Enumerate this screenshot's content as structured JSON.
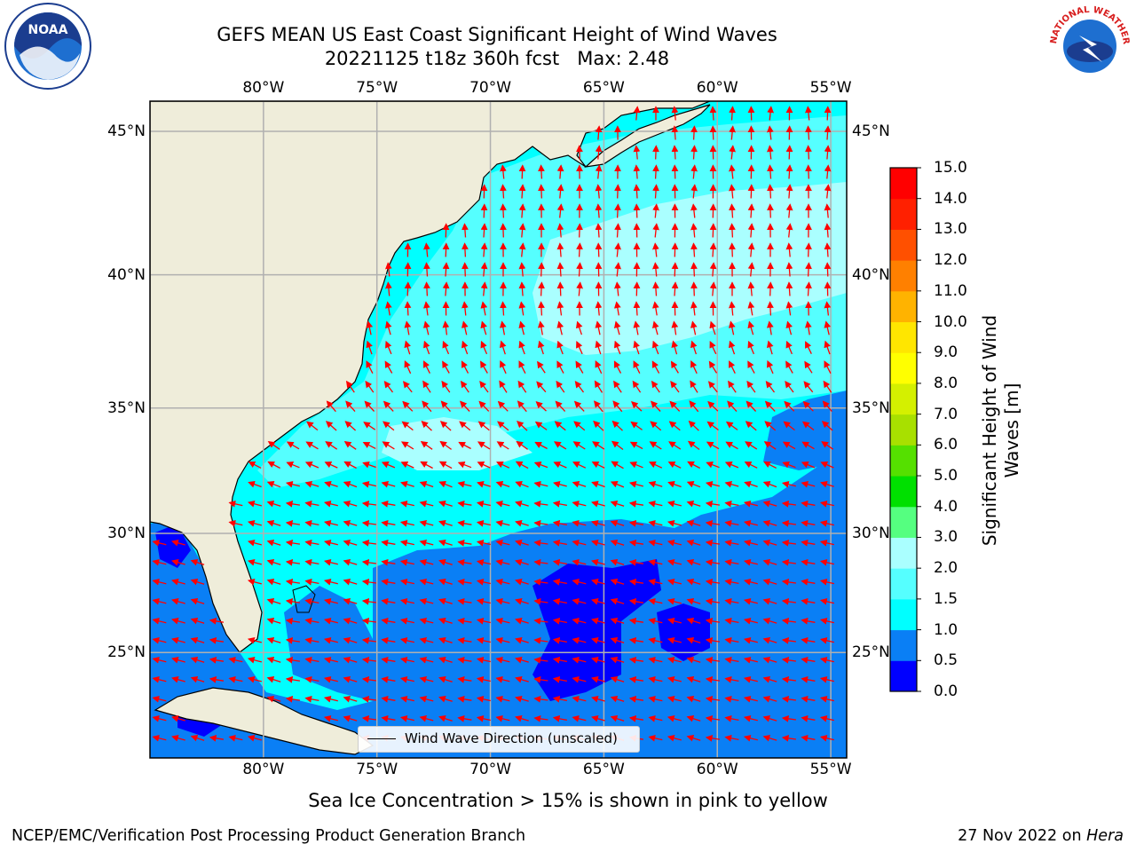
{
  "title": {
    "line1": "GEFS MEAN US East Coast Significant Height of Wind Waves",
    "line2": "20221125 t18z 360h fcst   Max: 2.48"
  },
  "map": {
    "lon_range": [
      -85,
      -54.3
    ],
    "lat_range": [
      20.4,
      46.0
    ],
    "lon_ticks": [
      -80,
      -75,
      -70,
      -65,
      -60,
      -55
    ],
    "lat_ticks": [
      25,
      30,
      35,
      40,
      45
    ],
    "lon_tick_labels": [
      "80°W",
      "75°W",
      "70°W",
      "65°W",
      "60°W",
      "55°W"
    ],
    "lat_tick_labels": [
      "25°N",
      "30°N",
      "35°N",
      "40°N",
      "45°N"
    ],
    "gridlines": true,
    "arrow_color": "#ff0000",
    "land_color": "#efedda",
    "gridline_color": "#b0b0b0"
  },
  "legend": {
    "label": "Wind Wave Direction (unscaled)",
    "placement": "lower-center"
  },
  "colorbar": {
    "title_line1": "Significant Height of Wind",
    "title_line2": "Waves [m]",
    "levels": [
      "0.0",
      "0.5",
      "1.0",
      "1.5",
      "2.0",
      "3.0",
      "4.0",
      "5.0",
      "6.0",
      "7.0",
      "8.0",
      "9.0",
      "10.0",
      "11.0",
      "12.0",
      "13.0",
      "14.0",
      "15.0"
    ],
    "colors": [
      "#0000ff",
      "#0a7ff5",
      "#00ffff",
      "#55ffff",
      "#aaffff",
      "#55ff80",
      "#00e000",
      "#55e000",
      "#a8e000",
      "#d4f000",
      "#ffff00",
      "#ffe600",
      "#ffb300",
      "#ff8000",
      "#ff5000",
      "#ff2000",
      "#ff0000"
    ]
  },
  "footer": {
    "sea_ice_note": "Sea Ice Concentration > 15% is shown in pink to yellow",
    "credit": "NCEP/EMC/Verification Post Processing Product Generation Branch",
    "date": "27 Nov 2022 on",
    "host": "Hera"
  },
  "logos": {
    "noaa_text": "NOAA",
    "nws_text": "NATIONAL WEATHER SERVICE"
  }
}
